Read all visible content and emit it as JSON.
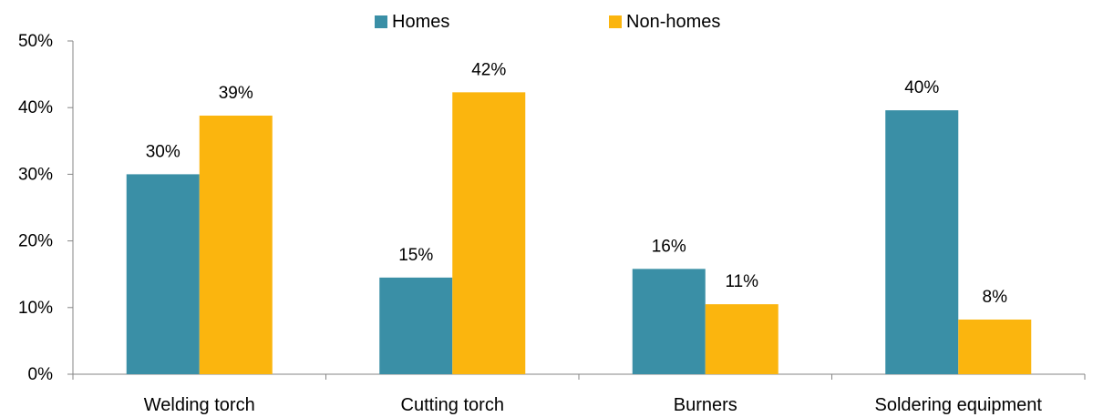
{
  "chart_data": {
    "type": "bar",
    "categories": [
      "Welding torch",
      "Cutting torch",
      "Burners",
      "Soldering equipment"
    ],
    "series": [
      {
        "name": "Homes",
        "color": "#3A8FA6",
        "values": [
          30,
          14.5,
          15.8,
          39.6
        ],
        "labels": [
          "30%",
          "15%",
          "16%",
          "40%"
        ]
      },
      {
        "name": "Non-homes",
        "color": "#FBB50E",
        "values": [
          38.8,
          42.3,
          10.5,
          8.2
        ],
        "labels": [
          "39%",
          "42%",
          "11%",
          "8%"
        ]
      }
    ],
    "ylim": [
      0,
      50
    ],
    "yticks": [
      0,
      10,
      20,
      30,
      40,
      50
    ],
    "ytick_labels": [
      "0%",
      "10%",
      "20%",
      "30%",
      "40%",
      "50%"
    ],
    "legend": "top-center",
    "grid": false
  }
}
